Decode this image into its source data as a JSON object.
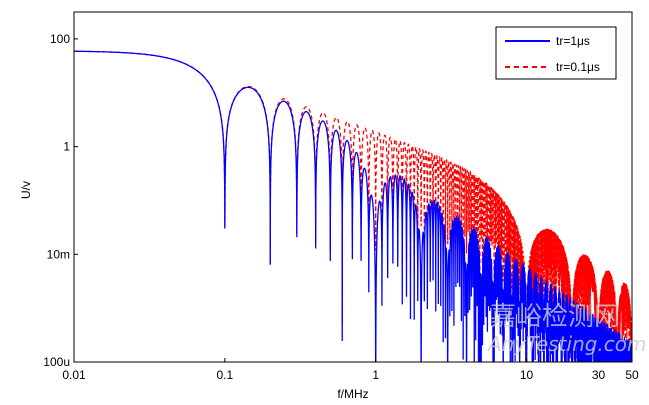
{
  "chart_data": {
    "type": "line",
    "title": "",
    "xlabel": "f/MHz",
    "ylabel": "U/v",
    "xscale": "log",
    "yscale": "log",
    "xlim": [
      0.01,
      50
    ],
    "ylim": [
      0.0001,
      316
    ],
    "xticks": [
      {
        "v": 0.01,
        "label": "0.01"
      },
      {
        "v": 0.1,
        "label": "0.1"
      },
      {
        "v": 1,
        "label": "1"
      },
      {
        "v": 10,
        "label": "10"
      },
      {
        "v": 30,
        "label": "30"
      },
      {
        "v": 50,
        "label": "50"
      }
    ],
    "yticks": [
      {
        "v": 0.0001,
        "label": "100u"
      },
      {
        "v": 0.01,
        "label": "10m"
      },
      {
        "v": 1,
        "label": "1"
      },
      {
        "v": 100,
        "label": "100"
      }
    ],
    "legend_position": "top-right",
    "series": [
      {
        "name": "tr=1μs",
        "color": "#0000ff",
        "style": "solid",
        "amplitude": 60,
        "pulse_width_us": 10,
        "rise_time_us": 1
      },
      {
        "name": "tr=0.1μs",
        "color": "#ff0000",
        "style": "dashed",
        "amplitude": 60,
        "pulse_width_us": 10,
        "rise_time_us": 0.1
      }
    ]
  },
  "watermark": {
    "cn": "嘉峪检测网",
    "en": "AnyTesting.com"
  }
}
